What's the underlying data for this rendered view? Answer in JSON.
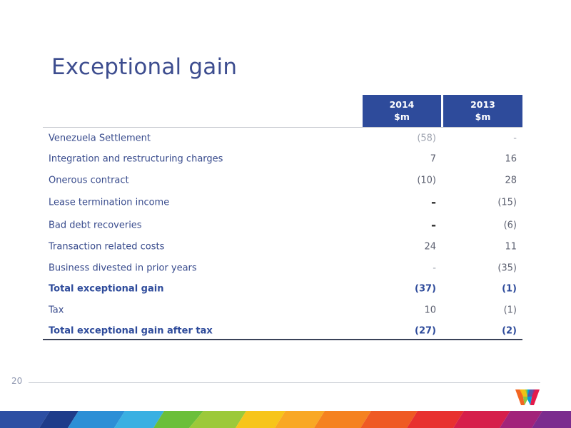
{
  "slide": {
    "title": "Exceptional gain",
    "page_number": "20"
  },
  "table": {
    "columns": [
      {
        "year": "2014",
        "unit": "$m"
      },
      {
        "year": "2013",
        "unit": "$m"
      }
    ],
    "rows": [
      {
        "label": "Venezuela Settlement",
        "v2014": "(58)",
        "v2013": "-"
      },
      {
        "label": "Integration and restructuring charges",
        "v2014": "7",
        "v2013": "16"
      },
      {
        "label": "Onerous contract",
        "v2014": "(10)",
        "v2013": "28"
      },
      {
        "label": "Lease termination income",
        "v2014": "-",
        "v2013": "(15)"
      },
      {
        "label": "Bad debt recoveries",
        "v2014": "-",
        "v2013": "(6)"
      },
      {
        "label": "Transaction related costs",
        "v2014": "24",
        "v2013": "11"
      },
      {
        "label": "Business divested in prior years",
        "v2014": "-",
        "v2013": "(35)"
      },
      {
        "label": "Total exceptional gain",
        "v2014": "(37)",
        "v2013": "(1)"
      },
      {
        "label": "Tax",
        "v2014": "10",
        "v2013": "(1)"
      },
      {
        "label": "Total exceptional gain after tax",
        "v2014": "(27)",
        "v2013": "(2)"
      }
    ]
  },
  "colors": {
    "header_fill": "#2e4b9b",
    "title_text": "#3d4d8f",
    "label_text": "#374a8c"
  }
}
